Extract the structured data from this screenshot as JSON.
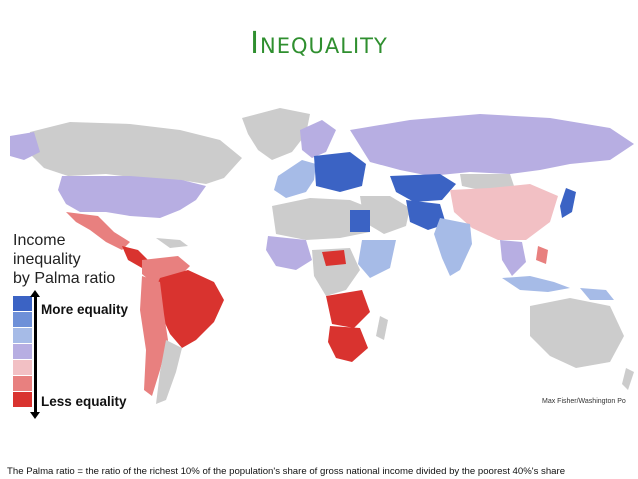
{
  "title": "Inequality",
  "legend": {
    "title_lines": [
      "Income",
      "inequality",
      "by Palma ratio"
    ],
    "more_label": "More equality",
    "less_label": "Less equality",
    "scale_colors": [
      "#3b63c4",
      "#6e90d8",
      "#a6bbe7",
      "#b7aee2",
      "#f2c0c4",
      "#e8807f",
      "#d9332f"
    ]
  },
  "credit": "Max Fisher/Washington Po",
  "footnote": "The Palma ratio  = the ratio of the richest 10% of the population's share of  gross national income  divided by the poorest 40%'s share",
  "colors": {
    "no_data": "#cccccc",
    "title_green": "#2f8f2f"
  }
}
